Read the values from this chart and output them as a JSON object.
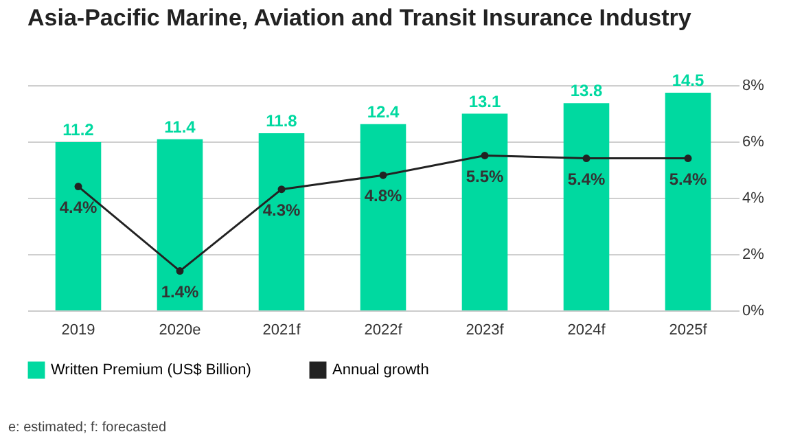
{
  "chart_data": {
    "type": "bar",
    "title": "Asia-Pacific Marine, Aviation and Transit Insurance Industry",
    "categories": [
      "2019",
      "2020e",
      "2021f",
      "2022f",
      "2023f",
      "2024f",
      "2025f"
    ],
    "series": [
      {
        "name": "Written Premium (US$ Billion)",
        "color": "#00d9a0",
        "values": [
          11.2,
          11.4,
          11.8,
          12.4,
          13.1,
          13.8,
          14.5
        ]
      },
      {
        "name": "Annual growth",
        "type": "line",
        "axis": "y2",
        "color": "#222222",
        "values": [
          4.4,
          1.4,
          4.3,
          4.8,
          5.5,
          5.4,
          5.4
        ],
        "value_labels": [
          "4.4%",
          "1.4%",
          "4.3%",
          "4.8%",
          "5.5%",
          "5.4%",
          "5.4%"
        ]
      }
    ],
    "ylim": [
      0,
      15
    ],
    "y2lim": [
      0,
      8
    ],
    "y2ticks": [
      {
        "value": 0,
        "label": "0%"
      },
      {
        "value": 2,
        "label": "2%"
      },
      {
        "value": 4,
        "label": "4%"
      },
      {
        "value": 6,
        "label": "6%"
      },
      {
        "value": 8,
        "label": "8%"
      }
    ],
    "data_labels": true,
    "grid": true,
    "legend": "bottom",
    "marker": "circle",
    "annotations": [
      "e: estimated; f: forecasted"
    ]
  }
}
